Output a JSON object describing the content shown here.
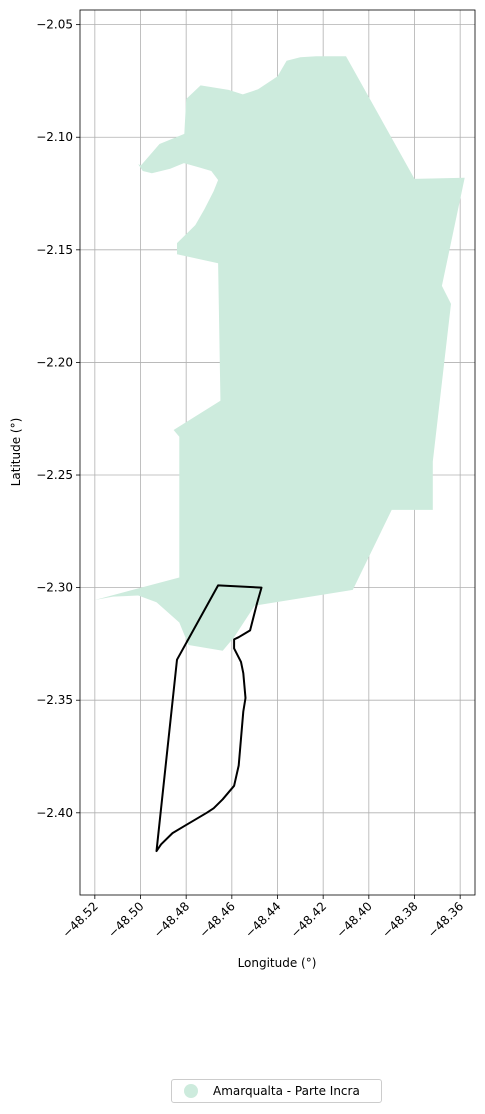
{
  "chart_data": {
    "type": "map",
    "xlabel": "Longitude (°)",
    "ylabel": "Latitude (°)",
    "xlim": [
      -48.5265,
      -48.3535
    ],
    "ylim": [
      -2.4365,
      -2.0435
    ],
    "grid": true,
    "x_ticks": [
      -48.52,
      -48.5,
      -48.48,
      -48.46,
      -48.44,
      -48.42,
      -48.4,
      -48.38,
      -48.36
    ],
    "x_tick_labels": [
      "−48.52",
      "−48.50",
      "−48.48",
      "−48.46",
      "−48.44",
      "−48.42",
      "−48.40",
      "−48.38",
      "−48.36"
    ],
    "y_ticks": [
      -2.05,
      -2.1,
      -2.15,
      -2.2,
      -2.25,
      -2.3,
      -2.35,
      -2.4
    ],
    "y_tick_labels": [
      "−2.05",
      "−2.10",
      "−2.15",
      "−2.20",
      "−2.25",
      "−2.30",
      "−2.35",
      "−2.40"
    ],
    "filled_area": {
      "name": "Amarqualta - Parte Incra",
      "color": "#cdebdd",
      "points": [
        [
          -48.4998,
          -2.1125
        ],
        [
          -48.4917,
          -2.103
        ],
        [
          -48.4808,
          -2.0985
        ],
        [
          -48.48,
          -2.083
        ],
        [
          -48.4737,
          -2.077
        ],
        [
          -48.4614,
          -2.079
        ],
        [
          -48.4552,
          -2.081
        ],
        [
          -48.4485,
          -2.0787
        ],
        [
          -48.44,
          -2.073
        ],
        [
          -48.436,
          -2.066
        ],
        [
          -48.43,
          -2.0645
        ],
        [
          -48.423,
          -2.064
        ],
        [
          -48.41,
          -2.064
        ],
        [
          -48.38,
          -2.1185
        ],
        [
          -48.358,
          -2.118
        ],
        [
          -48.368,
          -2.166
        ],
        [
          -48.364,
          -2.174
        ],
        [
          -48.372,
          -2.244
        ],
        [
          -48.372,
          -2.2655
        ],
        [
          -48.39,
          -2.2655
        ],
        [
          -48.407,
          -2.301
        ],
        [
          -48.45,
          -2.308
        ],
        [
          -48.459,
          -2.322
        ],
        [
          -48.464,
          -2.328
        ],
        [
          -48.479,
          -2.3255
        ],
        [
          -48.483,
          -2.3155
        ],
        [
          -48.493,
          -2.3065
        ],
        [
          -48.501,
          -2.3035
        ],
        [
          -48.512,
          -2.304
        ],
        [
          -48.52,
          -2.3055
        ],
        [
          -48.483,
          -2.2955
        ],
        [
          -48.483,
          -2.233
        ],
        [
          -48.4855,
          -2.23
        ],
        [
          -48.465,
          -2.217
        ],
        [
          -48.465,
          -2.216
        ],
        [
          -48.466,
          -2.156
        ],
        [
          -48.484,
          -2.152
        ],
        [
          -48.484,
          -2.147
        ],
        [
          -48.476,
          -2.139
        ],
        [
          -48.472,
          -2.132
        ],
        [
          -48.468,
          -2.124
        ],
        [
          -48.466,
          -2.119
        ],
        [
          -48.469,
          -2.115
        ],
        [
          -48.474,
          -2.1135
        ],
        [
          -48.481,
          -2.1115
        ],
        [
          -48.487,
          -2.114
        ],
        [
          -48.495,
          -2.116
        ],
        [
          -48.499,
          -2.115
        ],
        [
          -48.501,
          -2.112
        ]
      ]
    },
    "outline_area": {
      "color": "#000000",
      "points": [
        [
          -48.466,
          -2.299
        ],
        [
          -48.447,
          -2.3
        ],
        [
          -48.449,
          -2.307
        ],
        [
          -48.452,
          -2.319
        ],
        [
          -48.457,
          -2.322
        ],
        [
          -48.459,
          -2.323
        ],
        [
          -48.459,
          -2.327
        ],
        [
          -48.456,
          -2.333
        ],
        [
          -48.455,
          -2.338
        ],
        [
          -48.454,
          -2.349
        ],
        [
          -48.455,
          -2.355
        ],
        [
          -48.456,
          -2.367
        ],
        [
          -48.457,
          -2.379
        ],
        [
          -48.459,
          -2.388
        ],
        [
          -48.464,
          -2.394
        ],
        [
          -48.468,
          -2.398
        ],
        [
          -48.471,
          -2.4
        ],
        [
          -48.481,
          -2.406
        ],
        [
          -48.486,
          -2.409
        ],
        [
          -48.491,
          -2.414
        ],
        [
          -48.493,
          -2.417
        ],
        [
          -48.484,
          -2.332
        ],
        [
          -48.466,
          -2.299
        ]
      ]
    }
  },
  "legend": {
    "label": "Amarqualta - Parte Incra",
    "color": "#cdebdd"
  }
}
